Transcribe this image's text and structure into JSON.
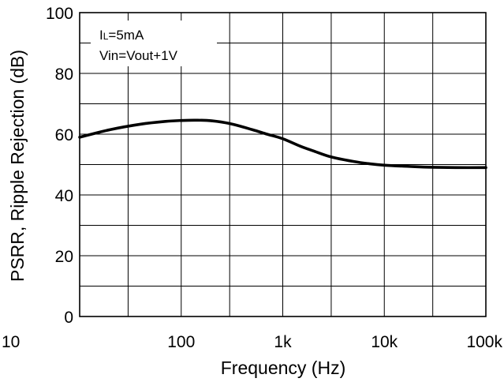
{
  "chart_data": {
    "type": "line",
    "title": "",
    "xlabel": "Frequency (Hz)",
    "ylabel": "PSRR, Ripple Rejection (dB)",
    "xscale": "log",
    "xlim": [
      10,
      100000
    ],
    "ylim": [
      0,
      100
    ],
    "grid": true,
    "x_ticks": [
      10,
      100,
      1000,
      10000,
      100000
    ],
    "x_tick_labels": [
      "10",
      "100",
      "1k",
      "10k",
      "100k"
    ],
    "y_ticks": [
      0,
      20,
      40,
      60,
      80,
      100
    ],
    "y_tick_labels": [
      "0",
      "20",
      "40",
      "60",
      "80",
      "100"
    ],
    "annotation": {
      "load_current_symbol": "I",
      "load_current_subscript": "L",
      "load_current_value": "=5mA",
      "voltage_condition": "Vin=Vout+1V"
    },
    "series": [
      {
        "color": "#000000",
        "x": [
          10,
          20,
          40,
          70,
          100,
          140,
          200,
          300,
          500,
          700,
          1000,
          1500,
          2000,
          3000,
          5000,
          7000,
          10000,
          20000,
          30000,
          50000,
          100000
        ],
        "y": [
          59.0,
          61.5,
          63.3,
          64.2,
          64.5,
          64.6,
          64.4,
          63.5,
          61.5,
          60.0,
          58.5,
          56.0,
          54.5,
          52.5,
          51.0,
          50.3,
          49.8,
          49.3,
          49.1,
          49.0,
          49.0
        ]
      }
    ]
  }
}
